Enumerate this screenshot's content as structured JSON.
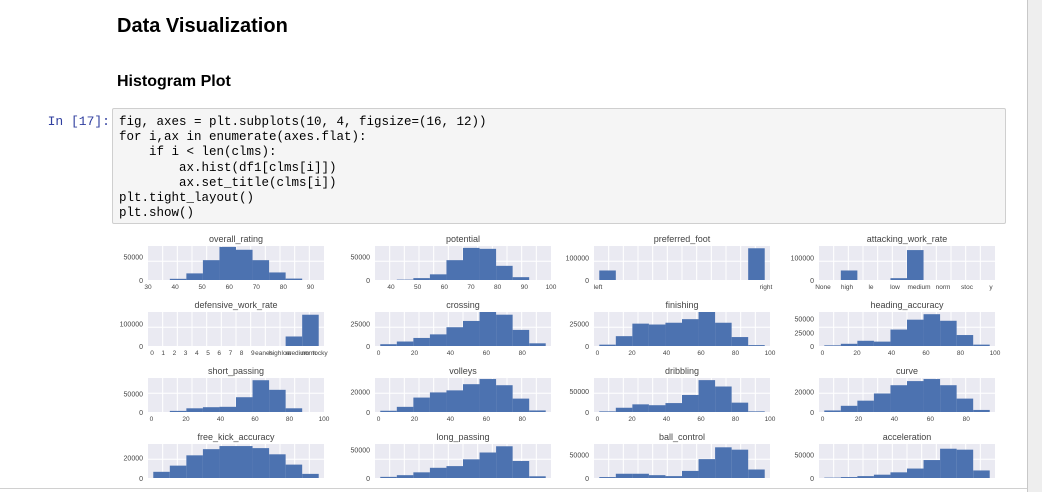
{
  "heading": "Data Visualization",
  "subheading": "Histogram Plot",
  "cell": {
    "prompt": "In [17]:",
    "lines": [
      "fig, axes = plt.subplots(10, 4, figsize=(16, 12))",
      "for i,ax in enumerate(axes.flat):",
      "    if i < len(clms):",
      "        ax.hist(df1[clms[i]])",
      "        ax.set_title(clms[i])",
      "plt.tight_layout()",
      "plt.show()"
    ]
  },
  "colors": {
    "bar": "#4c72b0",
    "axes_bg": "#eaeaf2",
    "grid": "#ffffff",
    "prompt": "#303f9f"
  },
  "chart_data": [
    {
      "type": "bar",
      "title": "overall_rating",
      "xlim": [
        30,
        95
      ],
      "x_ticks": [
        "30",
        "40",
        "50",
        "60",
        "70",
        "80",
        "90"
      ],
      "y_ticks": [
        "0",
        "50000"
      ],
      "ylim": [
        0,
        72000
      ],
      "values": [
        300,
        2500,
        14000,
        42000,
        70000,
        64000,
        42000,
        16000,
        3000,
        300
      ]
    },
    {
      "type": "bar",
      "title": "potential",
      "xlim": [
        34,
        100
      ],
      "x_ticks": [
        "40",
        "50",
        "60",
        "70",
        "80",
        "90",
        "100"
      ],
      "y_ticks": [
        "0",
        "50000"
      ],
      "ylim": [
        0,
        72000
      ],
      "values": [
        200,
        800,
        4000,
        12000,
        42000,
        68000,
        66000,
        30000,
        6000,
        500
      ]
    },
    {
      "type": "bar",
      "title": "preferred_foot",
      "xlim": [
        -0.05,
        1.05
      ],
      "x_ticks": [
        "left",
        "right"
      ],
      "y_ticks": [
        "0",
        "100000"
      ],
      "ylim": [
        0,
        150000
      ],
      "values": [
        42000,
        0,
        0,
        0,
        0,
        0,
        0,
        0,
        0,
        140000
      ]
    },
    {
      "type": "bar",
      "title": "attacking_work_rate",
      "xlim": [
        -0.5,
        8.5
      ],
      "x_ticks": [
        "None",
        "high",
        "le",
        "low",
        "medium",
        "norm",
        "stoc",
        "y"
      ],
      "y_ticks": [
        "0",
        "100000"
      ],
      "ylim": [
        0,
        150000
      ],
      "values": [
        600,
        42000,
        0,
        0,
        8000,
        132000,
        0,
        300,
        0,
        200
      ]
    },
    {
      "type": "bar",
      "title": "defensive_work_rate",
      "xlim": [
        0,
        20
      ],
      "x_ticks": [
        "0",
        "1",
        "2",
        "3",
        "4",
        "5",
        "6",
        "7",
        "8",
        "9",
        "eanes",
        "high",
        "low",
        "medium",
        "norm",
        "tocky"
      ],
      "y_ticks": [
        "0",
        "100000"
      ],
      "ylim": [
        0,
        150000
      ],
      "values": [
        200,
        200,
        200,
        200,
        200,
        200,
        200,
        200,
        42000,
        138000
      ]
    },
    {
      "type": "bar",
      "title": "crossing",
      "xlim": [
        -2,
        96
      ],
      "x_ticks": [
        "0",
        "20",
        "40",
        "60",
        "80"
      ],
      "y_ticks": [
        "0",
        "25000"
      ],
      "ylim": [
        0,
        38000
      ],
      "values": [
        2000,
        5000,
        9000,
        13000,
        21000,
        28000,
        38000,
        35000,
        18000,
        3000
      ]
    },
    {
      "type": "bar",
      "title": "finishing",
      "xlim": [
        -2,
        100
      ],
      "x_ticks": [
        "0",
        "20",
        "40",
        "60",
        "80",
        "100"
      ],
      "y_ticks": [
        "0",
        "25000"
      ],
      "ylim": [
        0,
        38000
      ],
      "values": [
        1500,
        11000,
        25000,
        24000,
        26000,
        30000,
        38000,
        26000,
        10000,
        1000
      ]
    },
    {
      "type": "bar",
      "title": "heading_accuracy",
      "xlim": [
        -2,
        100
      ],
      "x_ticks": [
        "0",
        "20",
        "40",
        "60",
        "80",
        "100"
      ],
      "y_ticks": [
        "0",
        "25000",
        "50000"
      ],
      "ylim": [
        0,
        62000
      ],
      "values": [
        1200,
        4000,
        9500,
        8000,
        30000,
        48000,
        58000,
        46000,
        20000,
        2500
      ]
    },
    {
      "type": "bar",
      "title": "short_passing",
      "xlim": [
        -2,
        100
      ],
      "x_ticks": [
        "0",
        "20",
        "40",
        "60",
        "80",
        "100"
      ],
      "y_ticks": [
        "0",
        "50000"
      ],
      "ylim": [
        0,
        92000
      ],
      "values": [
        800,
        3000,
        10000,
        13000,
        14000,
        40000,
        86000,
        60000,
        10000,
        500
      ]
    },
    {
      "type": "bar",
      "title": "volleys",
      "xlim": [
        -2,
        96
      ],
      "x_ticks": [
        "0",
        "20",
        "40",
        "60",
        "80"
      ],
      "y_ticks": [
        "0",
        "20000"
      ],
      "ylim": [
        0,
        33000
      ],
      "values": [
        1200,
        5000,
        14000,
        19000,
        21000,
        27000,
        32000,
        26000,
        13000,
        1500
      ]
    },
    {
      "type": "bar",
      "title": "dribbling",
      "xlim": [
        -2,
        100
      ],
      "x_ticks": [
        "0",
        "20",
        "40",
        "60",
        "80",
        "100"
      ],
      "y_ticks": [
        "0",
        "50000"
      ],
      "ylim": [
        0,
        80000
      ],
      "values": [
        1500,
        10000,
        18000,
        16000,
        21000,
        40000,
        75000,
        60000,
        22000,
        1500
      ]
    },
    {
      "type": "bar",
      "title": "curve",
      "xlim": [
        -2,
        96
      ],
      "x_ticks": [
        "0",
        "20",
        "40",
        "60",
        "80"
      ],
      "y_ticks": [
        "0",
        "20000"
      ],
      "ylim": [
        0,
        33000
      ],
      "values": [
        1500,
        6000,
        11000,
        18000,
        26000,
        30000,
        32000,
        26000,
        13000,
        2000
      ]
    },
    {
      "type": "bar",
      "title": "free_kick_accuracy",
      "xlim": [
        -2,
        100
      ],
      "x_ticks": [],
      "y_ticks": [
        "0",
        "20000"
      ],
      "ylim": [
        0,
        33000
      ],
      "values": [
        6000,
        12000,
        22000,
        28000,
        31000,
        31000,
        29000,
        23000,
        13000,
        4000
      ]
    },
    {
      "type": "bar",
      "title": "long_passing",
      "xlim": [
        -2,
        100
      ],
      "x_ticks": [],
      "y_ticks": [
        "0",
        "50000"
      ],
      "ylim": [
        0,
        60000
      ],
      "values": [
        2000,
        5000,
        10000,
        18000,
        21000,
        33000,
        45000,
        56000,
        30000,
        3000
      ]
    },
    {
      "type": "bar",
      "title": "ball_control",
      "xlim": [
        -2,
        100
      ],
      "x_ticks": [],
      "y_ticks": [
        "0",
        "50000"
      ],
      "ylim": [
        0,
        72000
      ],
      "values": [
        2000,
        9000,
        9000,
        6000,
        4000,
        15000,
        40000,
        65000,
        60000,
        18000
      ]
    },
    {
      "type": "bar",
      "title": "acceleration",
      "xlim": [
        -2,
        100
      ],
      "x_ticks": [],
      "y_ticks": [
        "0",
        "50000"
      ],
      "ylim": [
        0,
        72000
      ],
      "values": [
        800,
        2000,
        4000,
        7000,
        12000,
        20000,
        38000,
        62000,
        60000,
        16000
      ]
    }
  ]
}
